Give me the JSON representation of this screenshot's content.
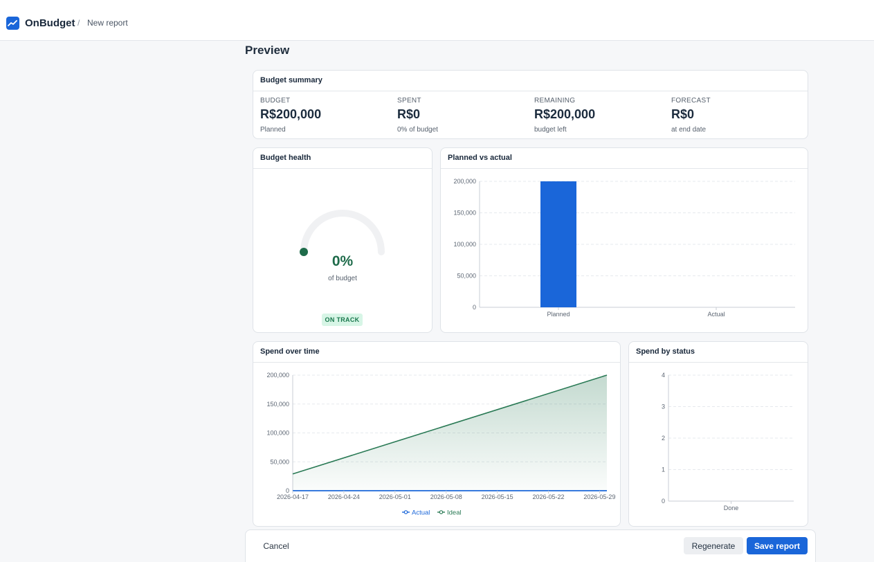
{
  "header": {
    "app_name": "OnBudget",
    "breadcrumb_separator": "/",
    "breadcrumb_current": "New report",
    "logo_icon": "trend-up-icon",
    "brand_color": "#1a66d9"
  },
  "page": {
    "title": "Preview"
  },
  "summary": {
    "title": "Budget summary",
    "stats": [
      {
        "label": "BUDGET",
        "value": "R$200,000",
        "sub": "Planned"
      },
      {
        "label": "SPENT",
        "value": "R$0",
        "sub": "0% of budget"
      },
      {
        "label": "REMAINING",
        "value": "R$200,000",
        "sub": "budget left"
      },
      {
        "label": "FORECAST",
        "value": "R$0",
        "sub": "at end date"
      }
    ]
  },
  "health": {
    "title": "Budget health",
    "percent_text": "0%",
    "percent_value": 0,
    "sub": "of budget",
    "status": "ON TRACK",
    "colors": {
      "track": "#f0f1f3",
      "indicator": "#1e6b4a"
    }
  },
  "planned_vs_actual": {
    "title": "Planned vs actual"
  },
  "spend_over_time": {
    "title": "Spend over time"
  },
  "spend_by_status": {
    "title": "Spend by status"
  },
  "footer": {
    "cancel_label": "Cancel",
    "regenerate_label": "Regenerate",
    "save_label": "Save report"
  },
  "chart_data": [
    {
      "type": "bar",
      "categories": [
        "Planned",
        "Actual"
      ],
      "values": [
        200000,
        0
      ],
      "yticks": [
        "0",
        "50,000",
        "100,000",
        "150,000",
        "200,000"
      ],
      "ylim": [
        0,
        200000
      ],
      "grid": true,
      "color": "#1a66d9"
    },
    {
      "type": "area",
      "x": [
        "2026-04-17",
        "2026-04-24",
        "2026-05-01",
        "2026-05-08",
        "2026-05-15",
        "2026-05-22",
        "2026-05-29"
      ],
      "xlim": [
        "2026-04-17",
        "2026-05-30"
      ],
      "yticks": [
        "0",
        "50,000",
        "100,000",
        "150,000",
        "200,000"
      ],
      "ylim": [
        0,
        200000
      ],
      "grid": true,
      "series": [
        {
          "name": "Actual",
          "color": "#1a66d9",
          "points": [
            [
              "2026-04-17",
              0
            ],
            [
              "2026-05-30",
              0
            ]
          ]
        },
        {
          "name": "Ideal",
          "color": "#2a7a55",
          "points": [
            [
              "2026-04-17",
              29000
            ],
            [
              "2026-05-30",
              200000
            ]
          ]
        }
      ],
      "legend": "bottom"
    },
    {
      "type": "bar",
      "categories": [
        "Done"
      ],
      "values": [
        0
      ],
      "yticks": [
        "0",
        "1",
        "2",
        "3",
        "4"
      ],
      "ylim": [
        0,
        4
      ],
      "grid": true
    }
  ]
}
